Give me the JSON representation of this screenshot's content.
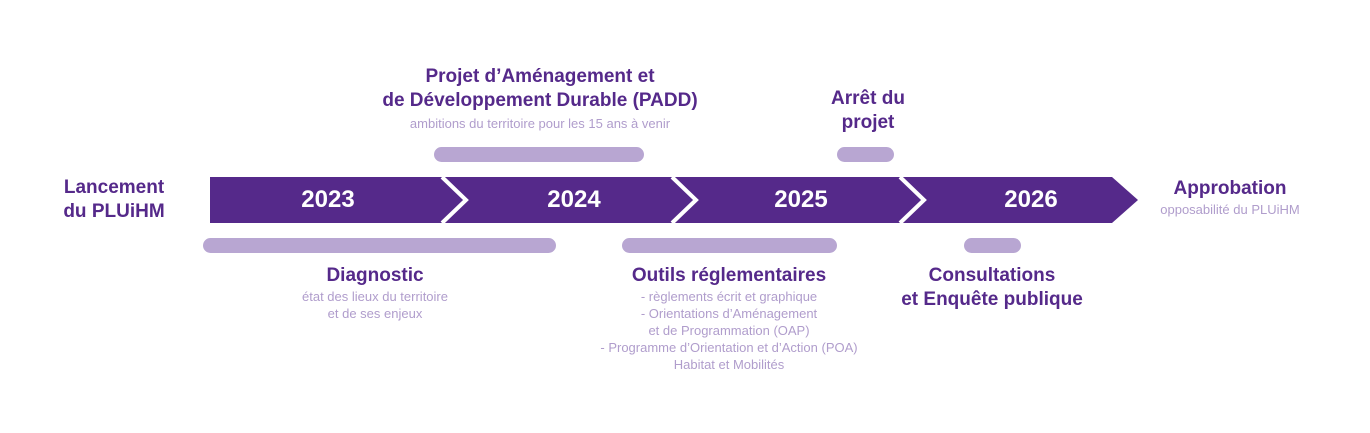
{
  "colors": {
    "accent": "#55298a",
    "muted": "#b09dcc",
    "bar": "#b8a6d2",
    "band": "#55298a"
  },
  "years": [
    "2023",
    "2024",
    "2025",
    "2026"
  ],
  "start": {
    "line1": "Lancement",
    "line2": "du PLUiHM"
  },
  "end": {
    "title": "Approbation",
    "subtitle": "opposabilité du PLUiHM"
  },
  "padd": {
    "line1": "Projet d’Aménagement et",
    "line2": "de Développement Durable (PADD)",
    "subtitle": "ambitions du territoire pour les 15 ans à venir"
  },
  "arret": {
    "line1": "Arrêt du",
    "line2": "projet"
  },
  "diagnostic": {
    "title": "Diagnostic",
    "sub1": "état des lieux du territoire",
    "sub2": "et de ses enjeux"
  },
  "outils": {
    "title": "Outils réglementaires",
    "lines": [
      "- règlements écrit et graphique",
      "- Orientations d’Aménagement",
      "et de Programmation (OAP)",
      "- Programme d’Orientation et d’Action (POA)",
      "Habitat et Mobilités"
    ]
  },
  "consultations": {
    "line1": "Consultations",
    "line2": "et Enquête publique"
  }
}
